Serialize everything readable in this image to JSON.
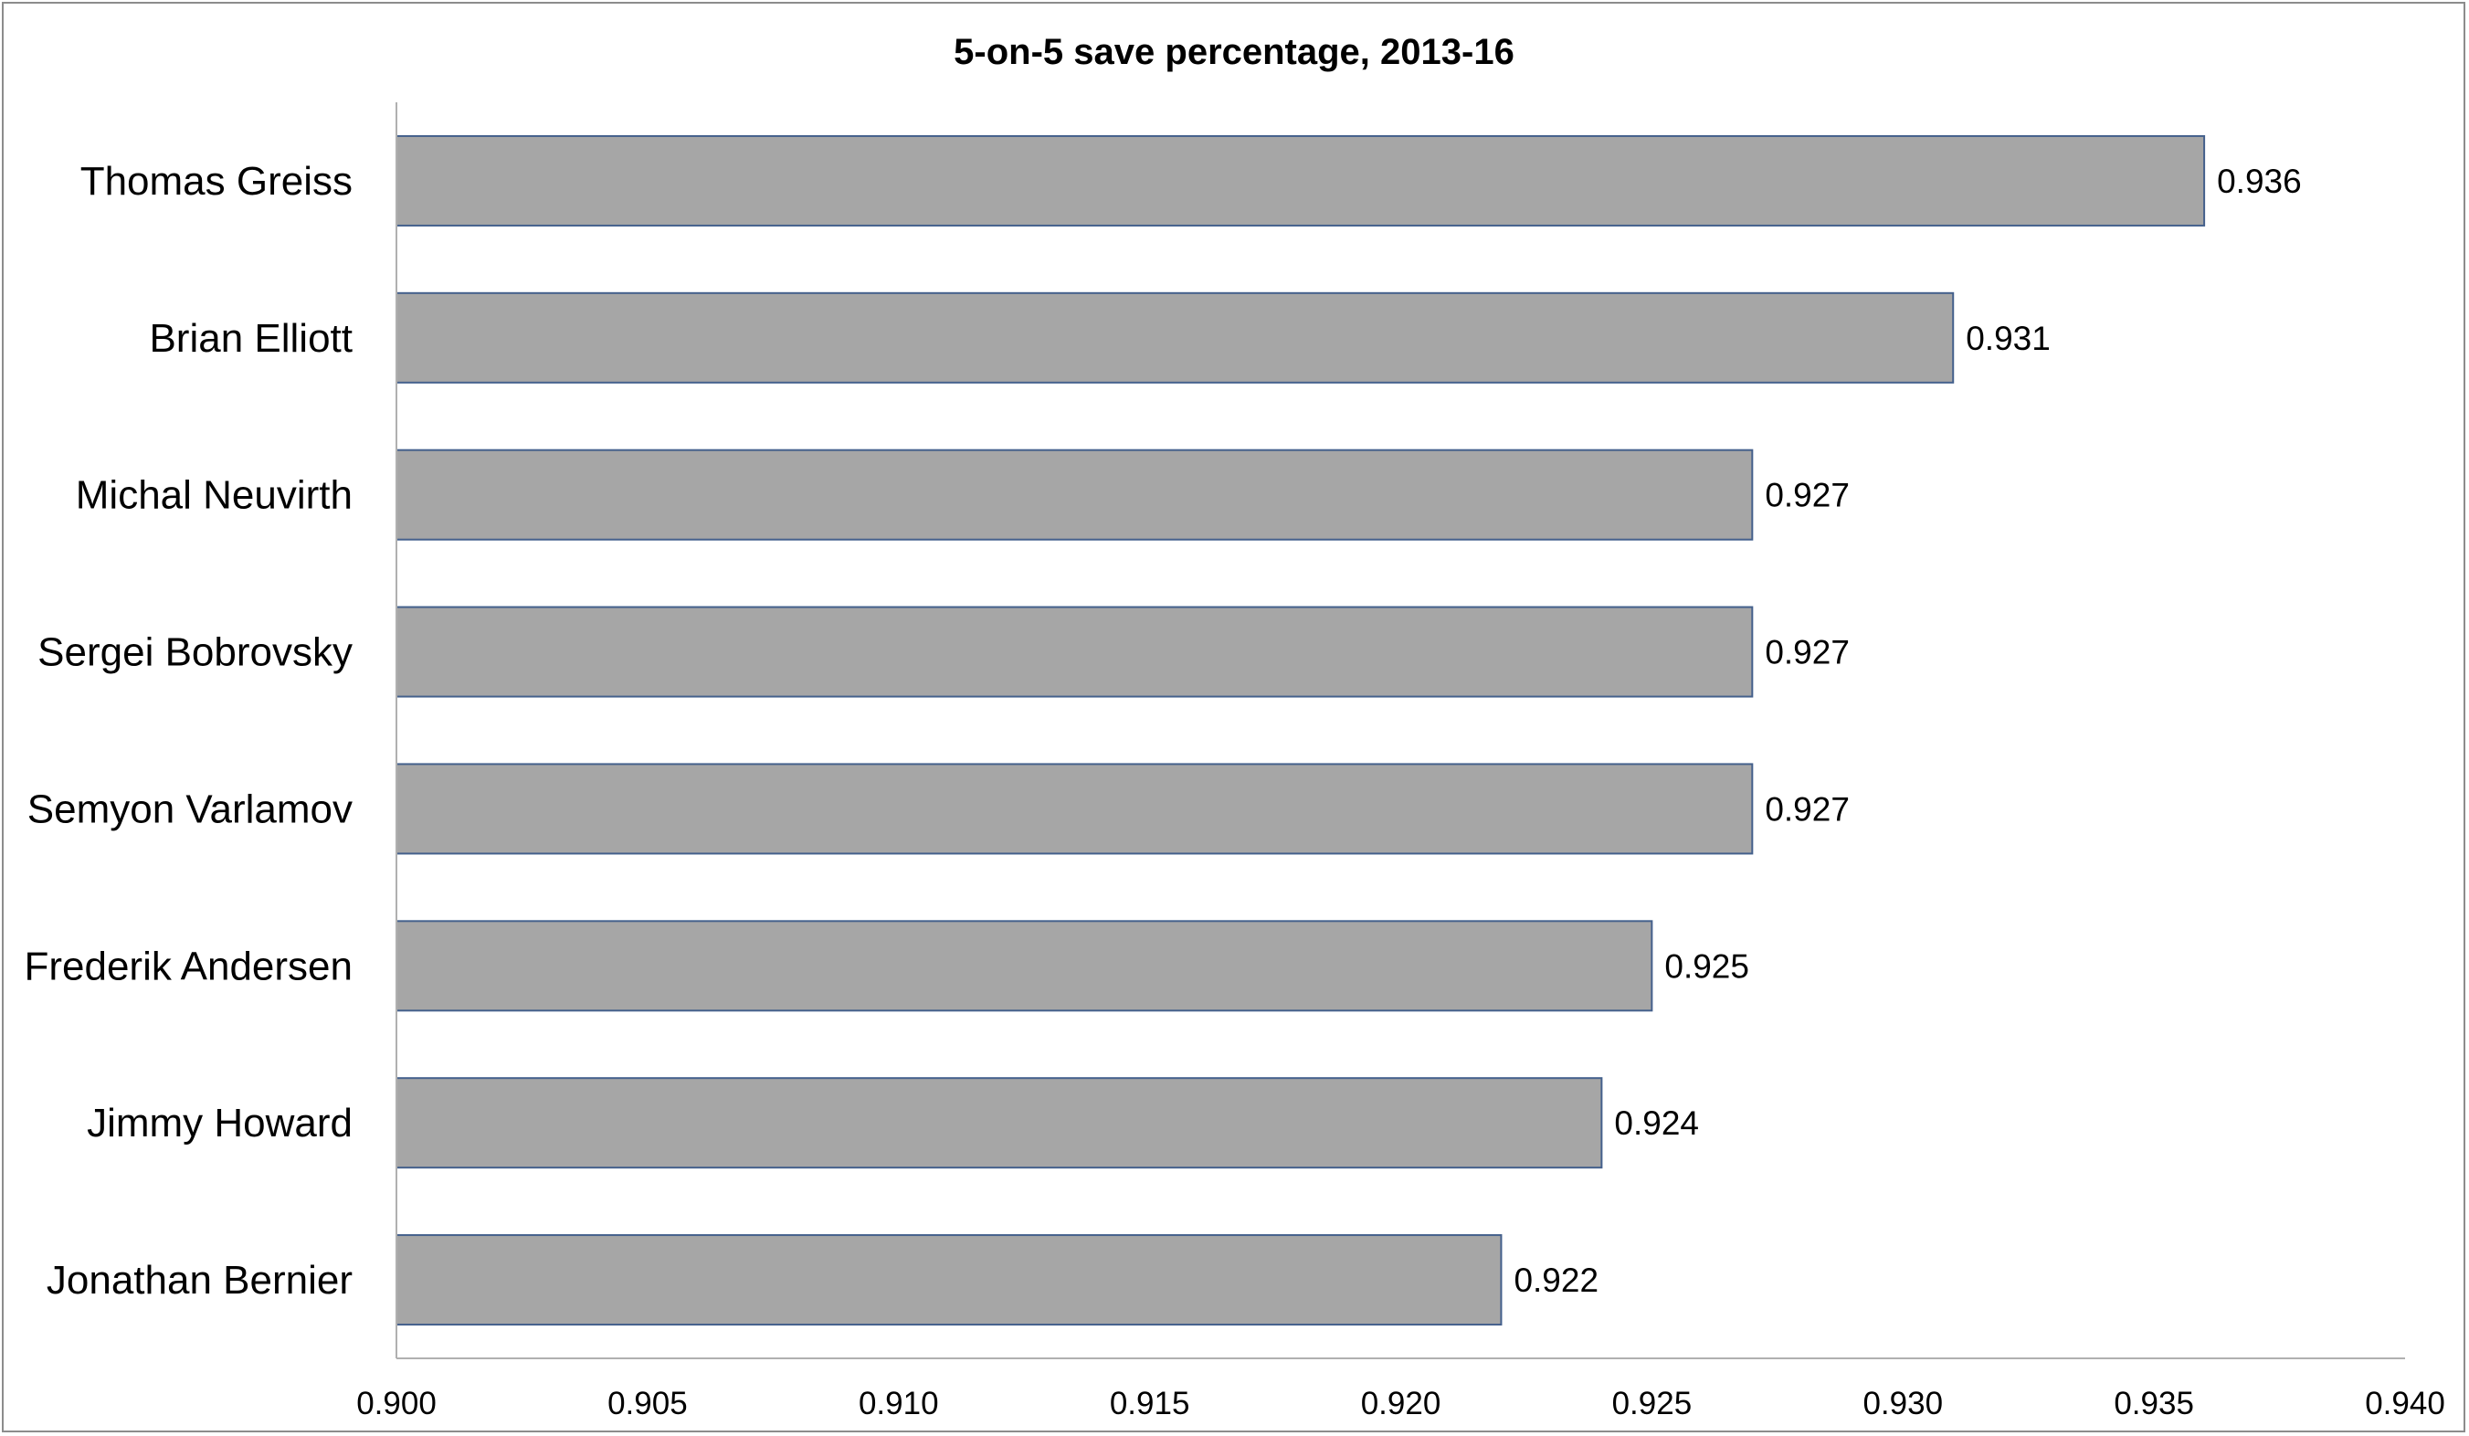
{
  "chart_data": {
    "type": "bar",
    "orientation": "horizontal",
    "title": "5-on-5 save percentage, 2013-16",
    "xlabel": "",
    "ylabel": "",
    "categories": [
      "Thomas Greiss",
      "Brian Elliott",
      "Michal Neuvirth",
      "Sergei Bobrovsky",
      "Semyon Varlamov",
      "Frederik Andersen",
      "Jimmy Howard",
      "Jonathan Bernier"
    ],
    "values": [
      0.936,
      0.931,
      0.927,
      0.927,
      0.927,
      0.925,
      0.924,
      0.922
    ],
    "data_labels": [
      "0.936",
      "0.931",
      "0.927",
      "0.927",
      "0.927",
      "0.925",
      "0.924",
      "0.922"
    ],
    "xlim": [
      0.9,
      0.94
    ],
    "x_ticks": [
      "0.900",
      "0.905",
      "0.910",
      "0.915",
      "0.920",
      "0.925",
      "0.930",
      "0.935",
      "0.940"
    ],
    "grid": false,
    "legend": "none",
    "bar_color": "#a6a6a6",
    "bar_border_color": "#44608c"
  }
}
